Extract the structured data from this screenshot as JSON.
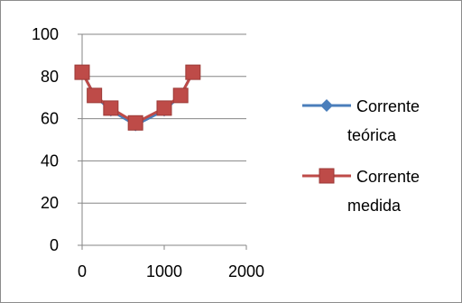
{
  "chart_data": {
    "type": "line",
    "title": "",
    "xlabel": "",
    "ylabel": "",
    "xlim": [
      0,
      2000
    ],
    "ylim": [
      0,
      100
    ],
    "x_ticks": [
      0,
      1000,
      2000
    ],
    "y_ticks": [
      0,
      20,
      40,
      60,
      80,
      100
    ],
    "x_tick_labels": [
      "0",
      "1000",
      "2000"
    ],
    "y_tick_labels": [
      "0",
      "20",
      "40",
      "60",
      "80",
      "100"
    ],
    "grid": "horizontal",
    "legend_position": "right",
    "series": [
      {
        "name_lines": [
          "Corrente",
          "teórica"
        ],
        "color": "#4a7ebb",
        "marker": "diamond",
        "x": [
          0,
          150,
          350,
          650,
          1000,
          1200,
          1350
        ],
        "y": [
          82,
          71,
          64,
          57,
          64,
          71,
          82
        ]
      },
      {
        "name_lines": [
          "Corrente",
          "medida"
        ],
        "color": "#be4b48",
        "marker": "square",
        "x": [
          0,
          150,
          350,
          650,
          1000,
          1200,
          1350
        ],
        "y": [
          82,
          71,
          65,
          58,
          65,
          71,
          82
        ]
      }
    ]
  }
}
